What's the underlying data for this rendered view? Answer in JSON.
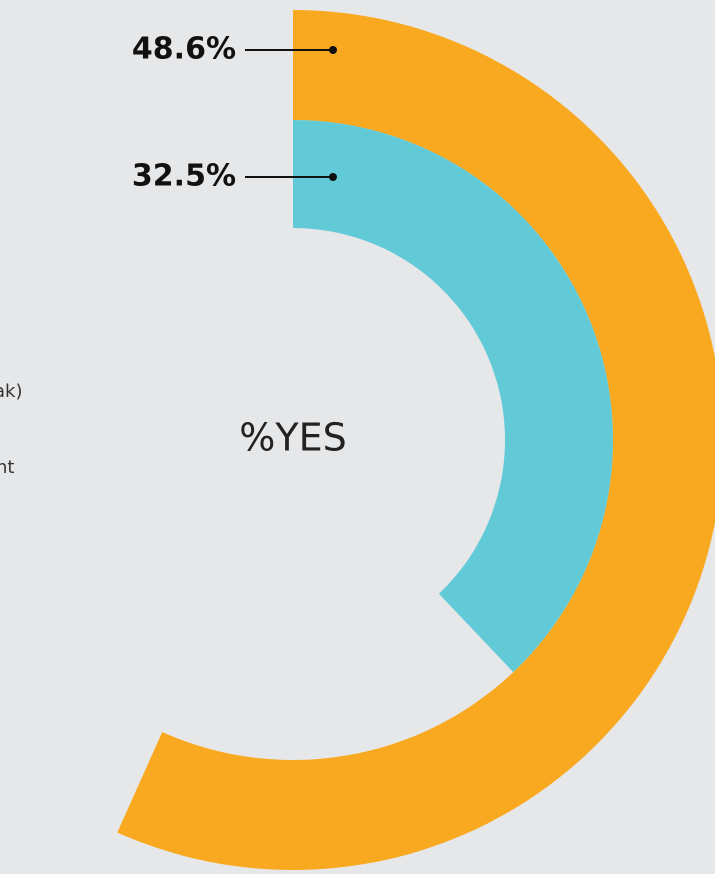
{
  "chart_data": {
    "type": "radial_bar",
    "center_label": "%YES",
    "series": [
      {
        "color": "#f9a91f",
        "values": [
          48.6
        ],
        "value_labels": [
          "48.6%"
        ]
      },
      {
        "color": "#62c9d7",
        "values": [
          32.5
        ],
        "value_labels": [
          "32.5%"
        ]
      }
    ],
    "annotations": [
      "ak)",
      "nt"
    ]
  }
}
